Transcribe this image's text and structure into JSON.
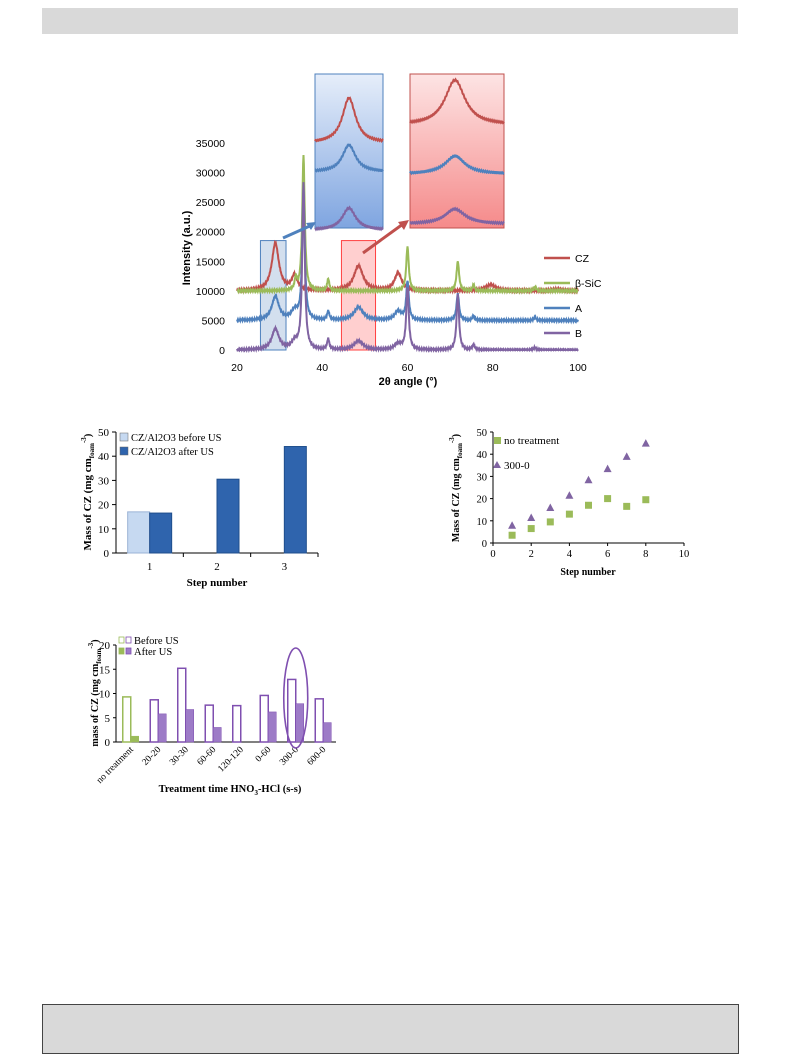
{
  "chart_data": [
    {
      "type": "line",
      "xlabel": "2θ angle (°)",
      "ylabel": "Intensity (a.u.)",
      "xlim": [
        20,
        100
      ],
      "ylim": [
        0,
        35000
      ],
      "x_ticks": [
        "20",
        "40",
        "60",
        "80",
        "100"
      ],
      "y_ticks": [
        "0",
        "5000",
        "10000",
        "15000",
        "20000",
        "25000",
        "30000",
        "35000"
      ],
      "legend_position": "right",
      "series": [
        {
          "name": "CZ",
          "color": "#c0504d",
          "offset": 10000,
          "peaks": [
            [
              29,
              8000,
              1.0
            ],
            [
              33.5,
              2500,
              0.8
            ],
            [
              48.5,
              4200,
              1.3
            ],
            [
              57.8,
              3000,
              1.0
            ],
            [
              79.5,
              1000,
              1.5
            ],
            [
              95,
              300,
              1.2
            ]
          ]
        },
        {
          "name": "β-SiC",
          "color": "#9bbb59",
          "offset": 10000,
          "peaks": [
            [
              35.6,
              23000,
              0.35
            ],
            [
              33.8,
              2000,
              0.3
            ],
            [
              41.4,
              2000,
              0.3
            ],
            [
              60,
              7500,
              0.35
            ],
            [
              71.8,
              5000,
              0.35
            ],
            [
              75.5,
              1000,
              0.3
            ],
            [
              89.9,
              700,
              0.35
            ]
          ]
        },
        {
          "name": "A",
          "color": "#4f81bd",
          "offset": 5000,
          "peaks": [
            [
              29,
              4000,
              1.0
            ],
            [
              33.5,
              1500,
              0.9
            ],
            [
              35.6,
              22000,
              0.35
            ],
            [
              41.4,
              1500,
              0.3
            ],
            [
              48.5,
              2200,
              1.3
            ],
            [
              57.8,
              1500,
              1.0
            ],
            [
              60,
              6500,
              0.35
            ],
            [
              71.8,
              4500,
              0.35
            ],
            [
              75.5,
              800,
              0.3
            ],
            [
              89.9,
              500,
              0.35
            ]
          ]
        },
        {
          "name": "B",
          "color": "#8064a2",
          "offset": 0,
          "peaks": [
            [
              29,
              3500,
              1.0
            ],
            [
              33.5,
              1200,
              0.9
            ],
            [
              35.6,
              28000,
              0.35
            ],
            [
              41.4,
              1800,
              0.3
            ],
            [
              48.5,
              1500,
              1.3
            ],
            [
              57.8,
              1000,
              1.0
            ],
            [
              60,
              10500,
              0.35
            ],
            [
              71.8,
              9300,
              0.35
            ],
            [
              75.5,
              900,
              0.3
            ],
            [
              89.9,
              400,
              0.35
            ]
          ]
        }
      ],
      "highlight_regions": [
        {
          "range": [
            25.5,
            31.5
          ],
          "color": "#4f81bd"
        },
        {
          "range": [
            44.5,
            52.5
          ],
          "color": "#ff4040"
        }
      ]
    },
    {
      "type": "bar",
      "xlabel": "Step number",
      "ylabel": "Mass of CZ (mg cm",
      "ylabel_sub": "foam",
      "ylabel_sup": "-3",
      "ylabel_end": ")",
      "ylim": [
        0,
        50
      ],
      "y_ticks": [
        "0",
        "10",
        "20",
        "30",
        "40",
        "50"
      ],
      "categories": [
        "1",
        "2",
        "3"
      ],
      "legend_position": "top-left",
      "series": [
        {
          "name": "CZ/Al2O3 before US",
          "color": "#c6d9f1",
          "values": [
            17,
            null,
            null
          ]
        },
        {
          "name": "CZ/Al2O3 after US",
          "color": "#2f64ad",
          "values": [
            16.5,
            30.5,
            44
          ]
        }
      ]
    },
    {
      "type": "scatter",
      "xlabel": "Step number",
      "ylabel": "Mass of CZ (mg cm",
      "ylabel_sub": "foam",
      "ylabel_sup": "-3",
      "ylabel_end": ")",
      "xlim": [
        0,
        10
      ],
      "ylim": [
        0,
        50
      ],
      "x_ticks": [
        "0",
        "2",
        "4",
        "6",
        "8",
        "10"
      ],
      "y_ticks": [
        "0",
        "10",
        "20",
        "30",
        "40",
        "50"
      ],
      "legend_position": "top-left",
      "series": [
        {
          "name": "no treatment",
          "marker": "square",
          "color": "#9bbb59",
          "x": [
            1,
            2,
            3,
            4,
            5,
            6,
            7,
            8
          ],
          "y": [
            3.5,
            6.5,
            9.5,
            13,
            17,
            20,
            16.5,
            19.5
          ]
        },
        {
          "name": "300-0",
          "marker": "triangle",
          "color": "#8064a2",
          "x": [
            1,
            2,
            3,
            4,
            5,
            6,
            7,
            8
          ],
          "y": [
            8,
            11.5,
            16,
            21.5,
            28.5,
            33.5,
            39,
            45
          ]
        }
      ]
    },
    {
      "type": "bar",
      "xlabel": "Treatment time HNO",
      "xlabel_sub": "3",
      "xlabel_end": "-HCl (s-s)",
      "ylabel": "mass of CZ (mg cm",
      "ylabel_sub": "foam",
      "ylabel_sup": "-3",
      "ylabel_end": ")",
      "ylim": [
        0,
        20
      ],
      "y_ticks": [
        "0",
        "5",
        "10",
        "15",
        "20"
      ],
      "categories": [
        "no treatment",
        "20-20",
        "30-30",
        "60-60",
        "120-120",
        "0-60",
        "300-0",
        "600-0"
      ],
      "legend_position": "top-left",
      "highlighted_category": "300-0",
      "series": [
        {
          "name": "Before US",
          "values": [
            9.3,
            8.7,
            15.2,
            7.6,
            7.5,
            9.6,
            12.9,
            8.9
          ]
        },
        {
          "name": "After US",
          "values": [
            1.2,
            5.8,
            6.7,
            3.0,
            null,
            6.2,
            7.9,
            4.0
          ]
        }
      ],
      "colors": {
        "green": "#9bbb59",
        "purple": "#7f4fb0",
        "purple_light": "#9d7bc7"
      }
    }
  ]
}
